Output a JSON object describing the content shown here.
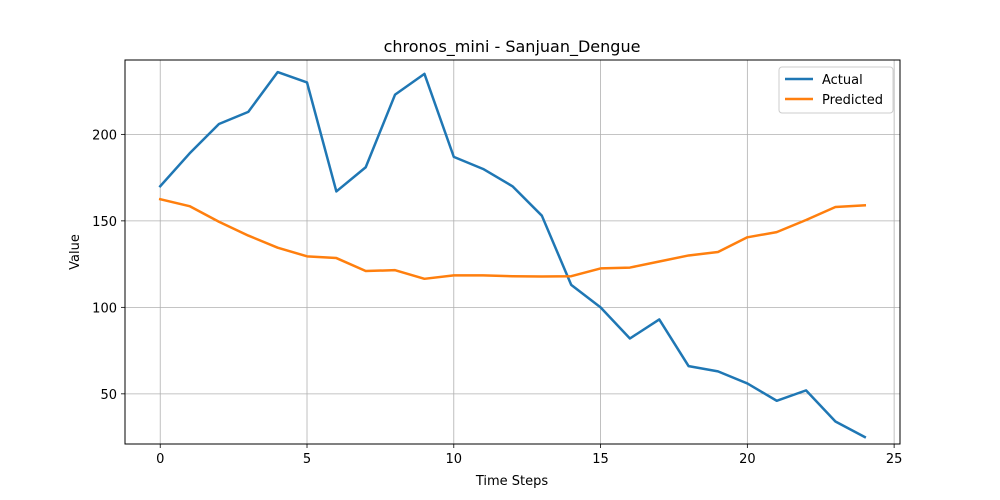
{
  "chart_data": {
    "type": "line",
    "title": "chronos_mini - Sanjuan_Dengue",
    "xlabel": "Time Steps",
    "ylabel": "Value",
    "xlim": [
      -1.2,
      25.2
    ],
    "ylim": [
      21,
      243
    ],
    "x_ticks": [
      0,
      5,
      10,
      15,
      20,
      25
    ],
    "y_ticks": [
      50,
      100,
      150,
      200
    ],
    "grid": true,
    "legend_position": "top-right",
    "x": [
      0,
      1,
      2,
      3,
      4,
      5,
      6,
      7,
      8,
      9,
      10,
      11,
      12,
      13,
      14,
      15,
      16,
      17,
      18,
      19,
      20,
      21,
      22,
      23,
      24
    ],
    "series": [
      {
        "name": "Actual",
        "color": "#1f77b4",
        "values": [
          170,
          189,
          206,
          213,
          236,
          230,
          167,
          181,
          223,
          235,
          187,
          180,
          170,
          153,
          113,
          100,
          82,
          93,
          66,
          63,
          56,
          46,
          52,
          34,
          25
        ]
      },
      {
        "name": "Predicted",
        "color": "#ff7f0e",
        "values": [
          162.5,
          158.5,
          149.5,
          141.5,
          134.5,
          129.5,
          128.5,
          121,
          121.5,
          116.5,
          118.5,
          118.5,
          118,
          117.8,
          118,
          122.5,
          123,
          126.5,
          130,
          132,
          140.5,
          143.5,
          150.5,
          158,
          159
        ]
      }
    ]
  }
}
